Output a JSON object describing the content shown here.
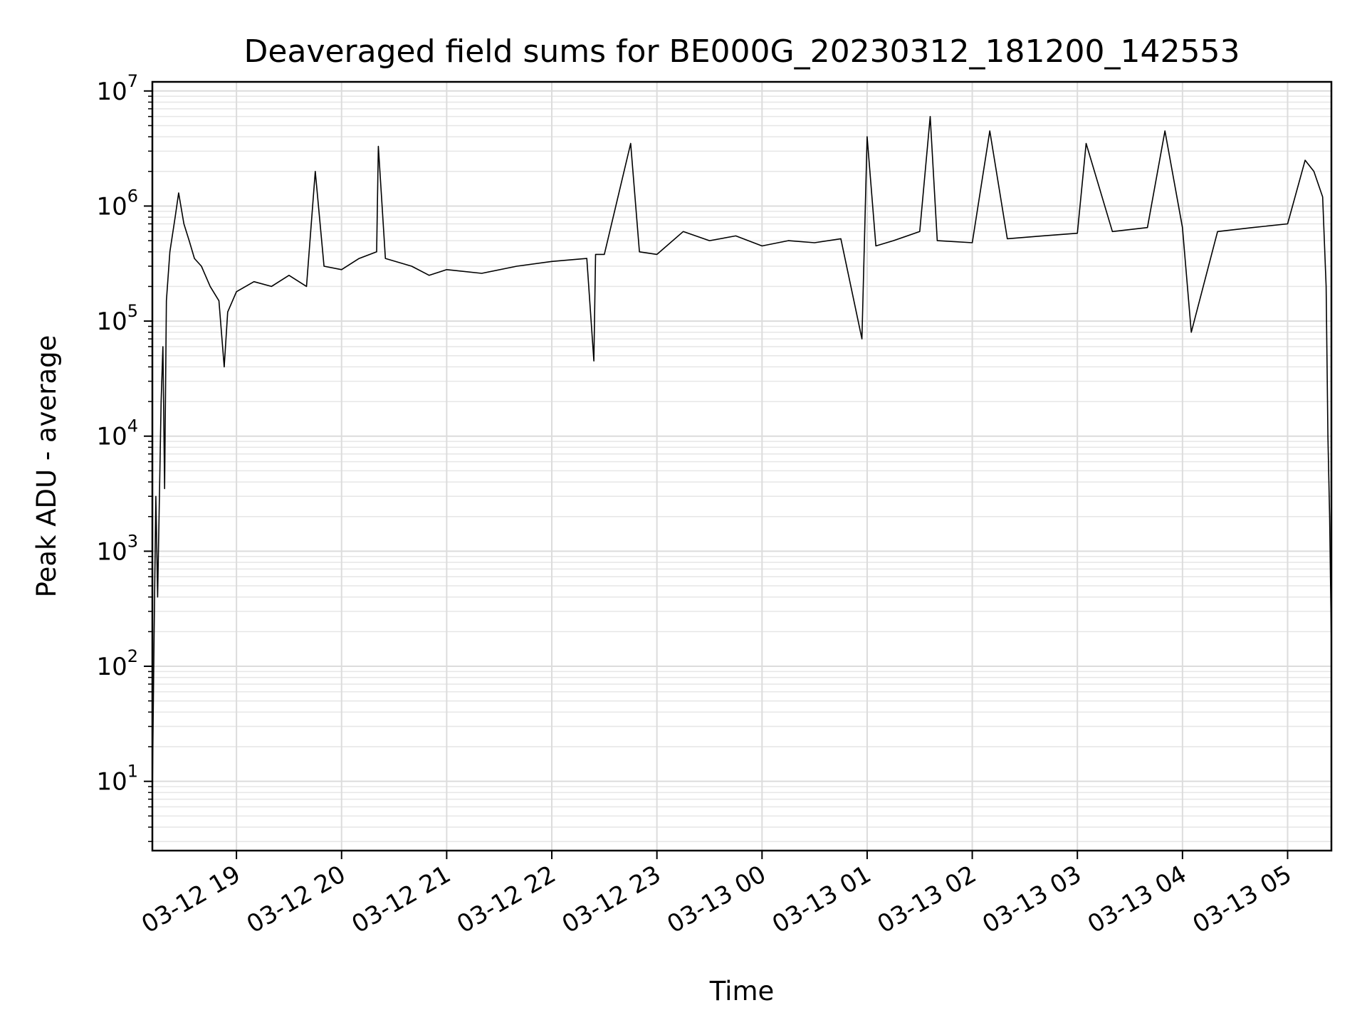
{
  "chart_data": {
    "type": "line",
    "title": "Deaveraged field sums for BE000G_20230312_181200_142553",
    "xlabel": "Time",
    "ylabel": "Peak ADU - average",
    "yscale": "log",
    "ylim": [
      2.5,
      12000000
    ],
    "xlim": [
      "03-12 18:12",
      "03-13 05:25"
    ],
    "grid": true,
    "x_ticks": [
      "03-12 19",
      "03-12 20",
      "03-12 21",
      "03-12 22",
      "03-12 23",
      "03-13 00",
      "03-13 01",
      "03-13 02",
      "03-13 03",
      "03-13 04",
      "03-13 05"
    ],
    "y_ticks": [
      {
        "base": "10",
        "exp": "1",
        "value": 10
      },
      {
        "base": "10",
        "exp": "2",
        "value": 100
      },
      {
        "base": "10",
        "exp": "3",
        "value": 1000
      },
      {
        "base": "10",
        "exp": "4",
        "value": 10000
      },
      {
        "base": "10",
        "exp": "5",
        "value": 100000
      },
      {
        "base": "10",
        "exp": "6",
        "value": 1000000
      },
      {
        "base": "10",
        "exp": "7",
        "value": 10000000
      }
    ],
    "series": [
      {
        "color": "#000000",
        "points": [
          [
            "03-12 18:12",
            8
          ],
          [
            "03-12 18:13",
            200
          ],
          [
            "03-12 18:14",
            3000
          ],
          [
            "03-12 18:15",
            400
          ],
          [
            "03-12 18:17",
            20000
          ],
          [
            "03-12 18:18",
            60000
          ],
          [
            "03-12 18:19",
            3500
          ],
          [
            "03-12 18:20",
            150000
          ],
          [
            "03-12 18:22",
            400000
          ],
          [
            "03-12 18:25",
            800000
          ],
          [
            "03-12 18:27",
            1300000
          ],
          [
            "03-12 18:30",
            700000
          ],
          [
            "03-12 18:33",
            500000
          ],
          [
            "03-12 18:36",
            350000
          ],
          [
            "03-12 18:40",
            300000
          ],
          [
            "03-12 18:45",
            200000
          ],
          [
            "03-12 18:50",
            150000
          ],
          [
            "03-12 18:53",
            40000
          ],
          [
            "03-12 18:55",
            120000
          ],
          [
            "03-12 19:00",
            180000
          ],
          [
            "03-12 19:10",
            220000
          ],
          [
            "03-12 19:20",
            200000
          ],
          [
            "03-12 19:30",
            250000
          ],
          [
            "03-12 19:40",
            200000
          ],
          [
            "03-12 19:45",
            2000000
          ],
          [
            "03-12 19:50",
            300000
          ],
          [
            "03-12 20:00",
            280000
          ],
          [
            "03-12 20:10",
            350000
          ],
          [
            "03-12 20:20",
            400000
          ],
          [
            "03-12 20:21",
            3300000
          ],
          [
            "03-12 20:25",
            350000
          ],
          [
            "03-12 20:40",
            300000
          ],
          [
            "03-12 20:50",
            250000
          ],
          [
            "03-12 21:00",
            280000
          ],
          [
            "03-12 21:20",
            260000
          ],
          [
            "03-12 21:40",
            300000
          ],
          [
            "03-12 22:00",
            330000
          ],
          [
            "03-12 22:20",
            350000
          ],
          [
            "03-12 22:24",
            45000
          ],
          [
            "03-12 22:25",
            380000
          ],
          [
            "03-12 22:30",
            380000
          ],
          [
            "03-12 22:45",
            3500000
          ],
          [
            "03-12 22:50",
            400000
          ],
          [
            "03-12 23:00",
            380000
          ],
          [
            "03-12 23:15",
            600000
          ],
          [
            "03-12 23:30",
            500000
          ],
          [
            "03-12 23:45",
            550000
          ],
          [
            "03-13 00:00",
            450000
          ],
          [
            "03-13 00:15",
            500000
          ],
          [
            "03-13 00:30",
            480000
          ],
          [
            "03-13 00:45",
            520000
          ],
          [
            "03-13 00:57",
            70000
          ],
          [
            "03-13 01:00",
            4000000
          ],
          [
            "03-13 01:05",
            450000
          ],
          [
            "03-13 01:15",
            500000
          ],
          [
            "03-13 01:30",
            600000
          ],
          [
            "03-13 01:36",
            6000000
          ],
          [
            "03-13 01:40",
            500000
          ],
          [
            "03-13 02:00",
            480000
          ],
          [
            "03-13 02:10",
            4500000
          ],
          [
            "03-13 02:20",
            520000
          ],
          [
            "03-13 02:40",
            550000
          ],
          [
            "03-13 03:00",
            580000
          ],
          [
            "03-13 03:05",
            3500000
          ],
          [
            "03-13 03:20",
            600000
          ],
          [
            "03-13 03:40",
            650000
          ],
          [
            "03-13 03:50",
            4500000
          ],
          [
            "03-13 04:00",
            650000
          ],
          [
            "03-13 04:05",
            80000
          ],
          [
            "03-13 04:20",
            600000
          ],
          [
            "03-13 04:40",
            650000
          ],
          [
            "03-13 05:00",
            700000
          ],
          [
            "03-13 05:10",
            2500000
          ],
          [
            "03-13 05:15",
            2000000
          ],
          [
            "03-13 05:20",
            1200000
          ],
          [
            "03-13 05:22",
            200000
          ],
          [
            "03-13 05:23",
            10000
          ],
          [
            "03-13 05:24",
            2000
          ],
          [
            "03-13 05:25",
            150
          ]
        ]
      }
    ]
  }
}
